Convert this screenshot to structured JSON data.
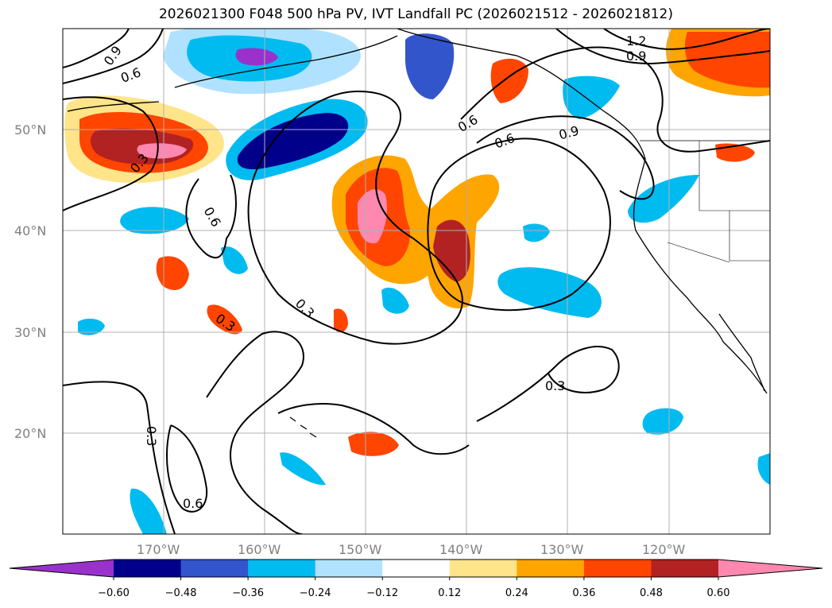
{
  "title": "2026021300 F048 500 hPa PV, IVT Landfall PC (2026021512 - 2026021812)",
  "map": {
    "lat_labels": [
      "50°N",
      "40°N",
      "30°N",
      "20°N"
    ],
    "lon_labels": [
      "170°W",
      "160°W",
      "150°W",
      "140°W",
      "130°W",
      "120°W"
    ],
    "contour_labels": [
      "0.9",
      "0.6",
      "1.2",
      "0.9",
      "0.6",
      "0.6",
      "0.9",
      "0.3",
      "0.6",
      "0.3",
      "0.3",
      "0.3",
      "0.3",
      "0.6"
    ],
    "contour_levels": [
      0.3,
      0.6,
      0.9,
      1.2
    ],
    "colors": {
      "neg_extreme": "#9932cc",
      "neg_060": "#00008b",
      "neg_048": "#3355cc",
      "neg_036": "#00bbf0",
      "neg_024": "#b0e2ff",
      "neutral": "#ffffff",
      "pos_012": "#ffe48a",
      "pos_024": "#ffa500",
      "pos_036": "#ff4500",
      "pos_048": "#b22222",
      "pos_060": "#ff88b0"
    }
  },
  "colorbar": {
    "ticks": [
      "−0.60",
      "−0.48",
      "−0.36",
      "−0.24",
      "−0.12",
      "0.12",
      "0.24",
      "0.36",
      "0.48",
      "0.60"
    ],
    "colors": [
      "#9932cc",
      "#00008b",
      "#3355cc",
      "#00bbf0",
      "#b0e2ff",
      "#ffffff",
      "#ffe48a",
      "#ffa500",
      "#ff4500",
      "#b22222",
      "#ff88b0"
    ]
  }
}
